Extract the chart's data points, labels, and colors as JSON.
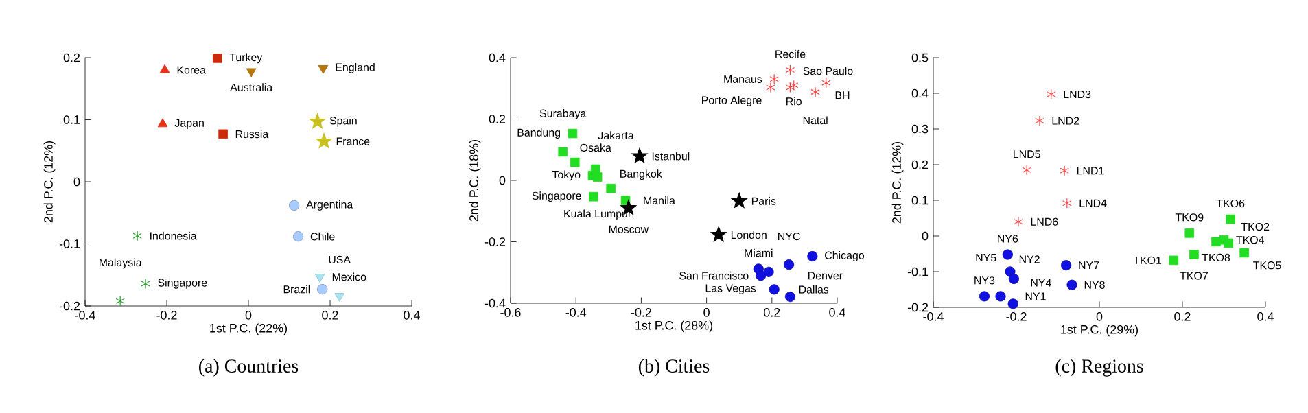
{
  "chart_data": [
    {
      "type": "scatter",
      "title": "(a) Countries",
      "xlabel": "1st P.C. (22%)",
      "ylabel": "2nd P.C. (12%)",
      "xlim": [
        -0.4,
        0.4
      ],
      "ylim": [
        -0.2,
        0.2
      ],
      "xticks": [
        -0.4,
        -0.2,
        0,
        0.2,
        0.4
      ],
      "yticks": [
        -0.2,
        -0.1,
        0,
        0.1,
        0.2
      ],
      "grid": false,
      "series": [
        {
          "color": "#e8301a",
          "marker": "triangle",
          "x": [
            -0.205,
            -0.21
          ],
          "values": [
            0.18,
            0.093
          ]
        },
        {
          "color": "#cc2a0a",
          "marker": "square",
          "x": [
            -0.076,
            -0.062
          ],
          "values": [
            0.199,
            0.077
          ]
        },
        {
          "color": "#b8760a",
          "marker": "triangle-down",
          "x": [
            0.007,
            0.183
          ],
          "values": [
            0.178,
            0.183
          ]
        },
        {
          "color": "#c8c020",
          "marker": "star",
          "x": [
            0.169,
            0.185
          ],
          "values": [
            0.097,
            0.065
          ]
        },
        {
          "color": "#a8ccff",
          "marker": "circle",
          "x": [
            0.112,
            0.122,
            0.181
          ],
          "values": [
            -0.038,
            -0.088,
            -0.173
          ]
        },
        {
          "color": "#a8e4f0",
          "marker": "triangle-down",
          "x": [
            0.175,
            0.223
          ],
          "values": [
            -0.153,
            -0.184
          ]
        },
        {
          "color": "#30a030",
          "marker": "cross",
          "x": [
            -0.272,
            -0.252,
            -0.314
          ],
          "values": [
            -0.087,
            -0.164,
            -0.192
          ]
        }
      ],
      "annotations": [
        {
          "text": "Korea",
          "x": -0.205,
          "y": 0.18
        },
        {
          "text": "Japan",
          "x": -0.21,
          "y": 0.093
        },
        {
          "text": "Turkey",
          "x": -0.076,
          "y": 0.199
        },
        {
          "text": "Russia",
          "x": -0.062,
          "y": 0.077
        },
        {
          "text": "Australia",
          "x": 0.007,
          "y": 0.178
        },
        {
          "text": "England",
          "x": 0.183,
          "y": 0.183
        },
        {
          "text": "Spain",
          "x": 0.169,
          "y": 0.097
        },
        {
          "text": "France",
          "x": 0.185,
          "y": 0.065
        },
        {
          "text": "Argentina",
          "x": 0.112,
          "y": -0.038
        },
        {
          "text": "Chile",
          "x": 0.122,
          "y": -0.088
        },
        {
          "text": "Brazil",
          "x": 0.181,
          "y": -0.173
        },
        {
          "text": "Mexico",
          "x": 0.175,
          "y": -0.153
        },
        {
          "text": "USA",
          "x": 0.223,
          "y": -0.184
        },
        {
          "text": "Indonesia",
          "x": -0.272,
          "y": -0.087
        },
        {
          "text": "Singapore",
          "x": -0.252,
          "y": -0.164
        },
        {
          "text": "Malaysia",
          "x": -0.314,
          "y": -0.192
        }
      ]
    },
    {
      "type": "scatter",
      "title": "(b) Cities",
      "xlabel": "1st P.C. (28%)",
      "ylabel": "2nd P.C. (18%)",
      "xlim": [
        -0.6,
        0.4
      ],
      "ylim": [
        -0.4,
        0.4
      ],
      "xticks": [
        -0.6,
        -0.4,
        -0.2,
        0,
        0.2,
        0.4
      ],
      "yticks": [
        -0.4,
        -0.2,
        0,
        0.2,
        0.4
      ],
      "grid": false,
      "series": [
        {
          "color": "#22dd22",
          "marker": "square",
          "x": [
            -0.41,
            -0.44,
            -0.403,
            -0.34,
            -0.349,
            -0.334,
            -0.293,
            -0.346,
            -0.248
          ],
          "values": [
            0.153,
            0.093,
            0.059,
            0.037,
            0.016,
            0.011,
            -0.026,
            -0.053,
            -0.065
          ]
        },
        {
          "color": "#000000",
          "marker": "star",
          "x": [
            -0.205,
            -0.239,
            0.1,
            0.037
          ],
          "values": [
            0.079,
            -0.09,
            -0.067,
            -0.177
          ]
        },
        {
          "color": "#ff4040",
          "marker": "cross",
          "x": [
            0.256,
            0.207,
            0.267,
            0.366,
            0.196,
            0.256,
            0.333
          ],
          "values": [
            0.36,
            0.33,
            0.31,
            0.318,
            0.303,
            0.303,
            0.288
          ]
        },
        {
          "color": "#1010e0",
          "marker": "circle",
          "x": [
            0.324,
            0.252,
            0.159,
            0.166,
            0.19,
            0.207,
            0.256
          ],
          "values": [
            -0.247,
            -0.274,
            -0.288,
            -0.31,
            -0.298,
            -0.355,
            -0.379
          ]
        }
      ],
      "annotations": [
        {
          "text": "Bandung",
          "x": -0.41,
          "y": 0.153
        },
        {
          "text": "Surabaya",
          "x": -0.44,
          "y": 0.093
        },
        {
          "text": "Jakarta",
          "x": -0.403,
          "y": 0.059
        },
        {
          "text": "Osaka",
          "x": -0.34,
          "y": 0.037
        },
        {
          "text": "Tokyo",
          "x": -0.349,
          "y": 0.016
        },
        {
          "text": "Kuala Lumpur",
          "x": -0.334,
          "y": 0.011
        },
        {
          "text": "Bangkok",
          "x": -0.293,
          "y": -0.026
        },
        {
          "text": "Singapore",
          "x": -0.346,
          "y": -0.053
        },
        {
          "text": "Manila",
          "x": -0.248,
          "y": -0.065
        },
        {
          "text": "Istanbul",
          "x": -0.205,
          "y": 0.079
        },
        {
          "text": "Moscow",
          "x": -0.239,
          "y": -0.09
        },
        {
          "text": "Paris",
          "x": 0.1,
          "y": -0.067
        },
        {
          "text": "London",
          "x": 0.037,
          "y": -0.177
        },
        {
          "text": "Recife",
          "x": 0.256,
          "y": 0.36
        },
        {
          "text": "Manaus",
          "x": 0.207,
          "y": 0.33
        },
        {
          "text": "Rio",
          "x": 0.267,
          "y": 0.31
        },
        {
          "text": "BH",
          "x": 0.366,
          "y": 0.318
        },
        {
          "text": "Porto Alegre",
          "x": 0.196,
          "y": 0.303
        },
        {
          "text": "Sao Paulo",
          "x": 0.256,
          "y": 0.303
        },
        {
          "text": "Natal",
          "x": 0.333,
          "y": 0.288
        },
        {
          "text": "Chicago",
          "x": 0.324,
          "y": -0.247
        },
        {
          "text": "NYC",
          "x": 0.252,
          "y": -0.274
        },
        {
          "text": "Miami",
          "x": 0.159,
          "y": -0.288
        },
        {
          "text": "San Francisco",
          "x": 0.166,
          "y": -0.31
        },
        {
          "text": "Las Vegas",
          "x": 0.19,
          "y": -0.298
        },
        {
          "text": "Dallas",
          "x": 0.207,
          "y": -0.355
        },
        {
          "text": "Denver",
          "x": 0.256,
          "y": -0.379
        }
      ]
    },
    {
      "type": "scatter",
      "title": "(c) Regions",
      "xlabel": "1st P.C. (29%)",
      "ylabel": "2nd P.C. (12%)",
      "xlim": [
        -0.4,
        0.4
      ],
      "ylim": [
        -0.2,
        0.5
      ],
      "xticks": [
        -0.4,
        -0.2,
        0,
        0.2,
        0.4
      ],
      "yticks": [
        -0.2,
        -0.1,
        0,
        0.1,
        0.2,
        0.3,
        0.4,
        0.5
      ],
      "grid": false,
      "series": [
        {
          "color": "#ff5050",
          "marker": "cross",
          "x": [
            -0.116,
            -0.144,
            -0.175,
            -0.084,
            -0.078,
            -0.195
          ],
          "values": [
            0.397,
            0.323,
            0.185,
            0.183,
            0.092,
            0.04
          ]
        },
        {
          "color": "#1010e0",
          "marker": "circle",
          "x": [
            -0.221,
            -0.215,
            -0.206,
            -0.277,
            -0.238,
            -0.208,
            -0.08,
            -0.066
          ],
          "values": [
            -0.052,
            -0.1,
            -0.12,
            -0.169,
            -0.169,
            -0.19,
            -0.082,
            -0.137
          ]
        },
        {
          "color": "#22dd22",
          "marker": "square",
          "x": [
            0.316,
            0.217,
            0.281,
            0.3,
            0.311,
            0.349,
            0.228,
            0.179
          ],
          "values": [
            0.047,
            0.008,
            -0.016,
            -0.011,
            -0.02,
            -0.047,
            -0.052,
            -0.068
          ]
        }
      ],
      "annotations": [
        {
          "text": "LND3",
          "x": -0.116,
          "y": 0.397
        },
        {
          "text": "LND2",
          "x": -0.144,
          "y": 0.323
        },
        {
          "text": "LND5",
          "x": -0.175,
          "y": 0.185
        },
        {
          "text": "LND1",
          "x": -0.084,
          "y": 0.183
        },
        {
          "text": "LND4",
          "x": -0.078,
          "y": 0.092
        },
        {
          "text": "LND6",
          "x": -0.195,
          "y": 0.04
        },
        {
          "text": "NY6",
          "x": -0.221,
          "y": -0.052
        },
        {
          "text": "NY2",
          "x": -0.215,
          "y": -0.1
        },
        {
          "text": "NY5",
          "x": -0.206,
          "y": -0.12
        },
        {
          "text": "NY3",
          "x": -0.277,
          "y": -0.169
        },
        {
          "text": "NY1",
          "x": -0.238,
          "y": -0.169
        },
        {
          "text": "NY4",
          "x": -0.208,
          "y": -0.19
        },
        {
          "text": "NY7",
          "x": -0.08,
          "y": -0.082
        },
        {
          "text": "NY8",
          "x": -0.066,
          "y": -0.137
        },
        {
          "text": "TKO6",
          "x": 0.316,
          "y": 0.047
        },
        {
          "text": "TKO9",
          "x": 0.217,
          "y": 0.008
        },
        {
          "text": "TKO8",
          "x": 0.281,
          "y": -0.016
        },
        {
          "text": "TKO4",
          "x": 0.3,
          "y": -0.011
        },
        {
          "text": "TKO2",
          "x": 0.311,
          "y": -0.02
        },
        {
          "text": "TKO5",
          "x": 0.349,
          "y": -0.047
        },
        {
          "text": "TKO7",
          "x": 0.228,
          "y": -0.052
        },
        {
          "text": "TKO1",
          "x": 0.179,
          "y": -0.068
        }
      ]
    }
  ]
}
